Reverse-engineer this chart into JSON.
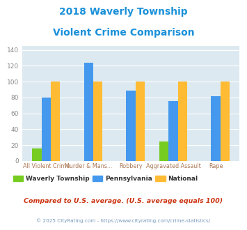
{
  "title_line1": "2018 Waverly Township",
  "title_line2": "Violent Crime Comparison",
  "title_color": "#1a90d9",
  "cat_line1": [
    "",
    "Murder & Mans...",
    "",
    "Aggravated Assault",
    ""
  ],
  "cat_line2": [
    "All Violent Crime",
    "",
    "Robbery",
    "",
    "Rape"
  ],
  "waverly": [
    16,
    0,
    0,
    25,
    0
  ],
  "pennsylvania": [
    80,
    124,
    89,
    76,
    82
  ],
  "national": [
    100,
    100,
    100,
    100,
    100
  ],
  "waverly_color": "#77cc22",
  "pennsylvania_color": "#4499ee",
  "national_color": "#ffbb33",
  "ylim": [
    0,
    145
  ],
  "yticks": [
    0,
    20,
    40,
    60,
    80,
    100,
    120,
    140
  ],
  "bar_width": 0.22,
  "plot_bg": "#dce9f0",
  "legend_labels": [
    "Waverly Township",
    "Pennsylvania",
    "National"
  ],
  "footnote1": "Compared to U.S. average. (U.S. average equals 100)",
  "footnote2": "© 2025 CityRating.com - https://www.cityrating.com/crime-statistics/",
  "footnote1_color": "#cc3311",
  "footnote2_color": "#7799bb"
}
